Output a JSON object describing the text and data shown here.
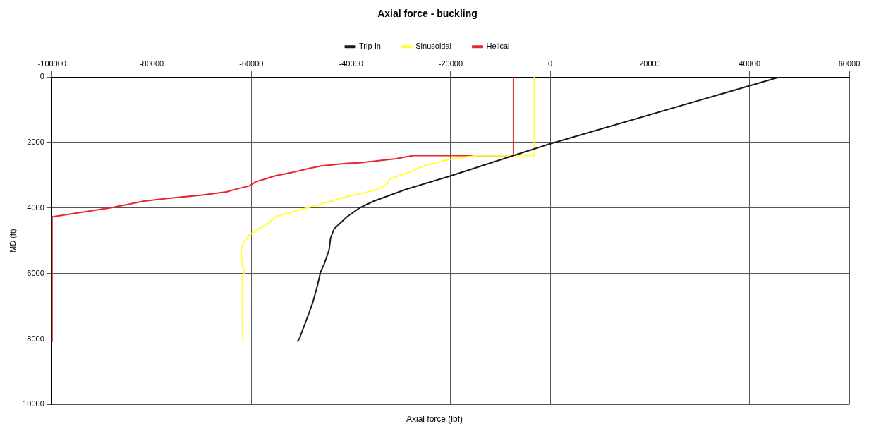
{
  "chart_data": {
    "type": "line",
    "title": "Axial force - buckling",
    "xlabel": "Axial force (lbf)",
    "ylabel": "MD (ft)",
    "xlim": [
      -100000,
      60000
    ],
    "xticks": [
      -100000,
      -80000,
      -60000,
      -40000,
      -20000,
      0,
      20000,
      40000,
      60000
    ],
    "ylim": [
      10000,
      0
    ],
    "yticks": [
      0,
      2000,
      4000,
      6000,
      8000,
      10000
    ],
    "grid": true,
    "legend": "top",
    "marker": "none",
    "line_style": "solid",
    "series": [
      {
        "name": "Trip-in",
        "color": "#1a1a1a",
        "x": [
          46100,
          0,
          -7400,
          -20400,
          -28900,
          -35400,
          -38200,
          -40800,
          -43400,
          -44100,
          -44400,
          -45400,
          -46100,
          -46700,
          -47700,
          -49000,
          -50400,
          -50800
        ],
        "values": [
          0,
          2040,
          2400,
          3040,
          3430,
          3790,
          3990,
          4270,
          4640,
          4920,
          5280,
          5720,
          5950,
          6350,
          6900,
          7440,
          8000,
          8080
        ]
      },
      {
        "name": "Sinusoidal",
        "color": "#ffff33",
        "x": [
          -3200,
          -3200,
          -7400,
          -14700,
          -16500,
          -20400,
          -25000,
          -28900,
          -32200,
          -32800,
          -35400,
          -40800,
          -48600,
          -55200,
          -56500,
          -60400,
          -61700,
          -62100,
          -61800,
          -61400,
          -61800,
          -61800,
          -61700,
          -61700
        ],
        "values": [
          0,
          2400,
          2400,
          2400,
          2440,
          2520,
          2700,
          2940,
          3110,
          3290,
          3470,
          3650,
          3990,
          4270,
          4460,
          4820,
          5100,
          5280,
          5720,
          5950,
          6090,
          7260,
          7980,
          8080
        ]
      },
      {
        "name": "Helical",
        "color": "#e8262a",
        "x": [
          -7400,
          -7400,
          -26900,
          -27500,
          -31000,
          -38200,
          -40800,
          -46000,
          -48600,
          -51900,
          -55200,
          -57100,
          -59100,
          -60400,
          -62400,
          -65000,
          -70200,
          -76900,
          -81500,
          -88000,
          -99900,
          -100000,
          -100000
        ],
        "values": [
          0,
          2400,
          2400,
          2400,
          2500,
          2620,
          2640,
          2720,
          2800,
          2920,
          3020,
          3110,
          3200,
          3330,
          3400,
          3510,
          3610,
          3710,
          3790,
          3990,
          4270,
          4300,
          8080
        ]
      }
    ]
  }
}
